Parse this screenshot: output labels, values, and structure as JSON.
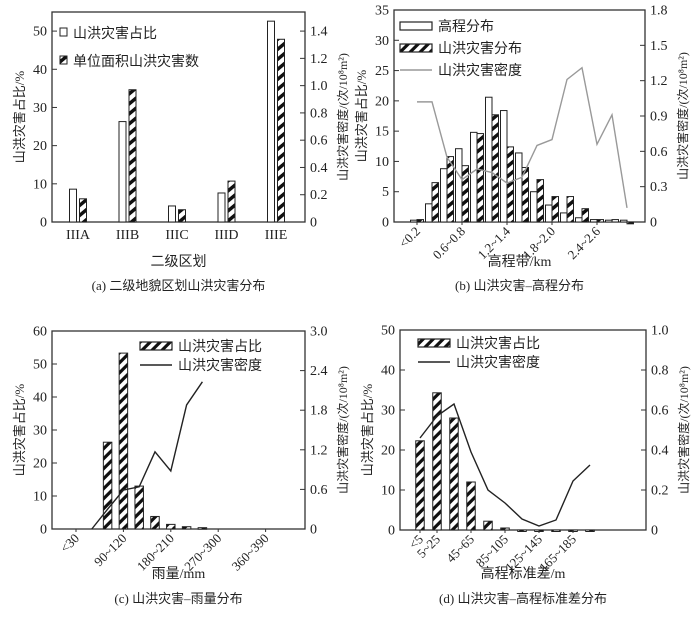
{
  "chart_data": [
    {
      "id": "a",
      "type": "bar",
      "caption": "(a) 二级地貌区划山洪灾害分布",
      "xlabel": "二级区划",
      "ylabel": "山洪灾害占比/%",
      "y2label": "山洪灾害密度/(次/10⁸m²)",
      "categories": [
        "IIIA",
        "IIIB",
        "IIIC",
        "IIID",
        "IIIE"
      ],
      "ylim": [
        0,
        55
      ],
      "y2lim": [
        0,
        1.54
      ],
      "yticks": [
        "0",
        "10",
        "20",
        "30",
        "40",
        "50"
      ],
      "y2ticks": [
        "0",
        "0.2",
        "0.4",
        "0.6",
        "0.8",
        "1.0",
        "1.2",
        "1.4"
      ],
      "legend_position": "top-left",
      "series": [
        {
          "name": "山洪灾害占比",
          "style": "open",
          "axis": "left",
          "values": [
            8.6,
            26.3,
            4.2,
            7.6,
            52.6
          ]
        },
        {
          "name": "单位面积山洪灾害数",
          "style": "hatched",
          "axis": "right",
          "values": [
            0.17,
            0.97,
            0.09,
            0.3,
            1.34
          ]
        }
      ]
    },
    {
      "id": "b",
      "type": "bar",
      "caption": "(b) 山洪灾害–高程分布",
      "xlabel": "高程带/km",
      "ylabel": "山洪灾害占比/%",
      "y2label": "山洪灾害密度/(次/10⁸m²)",
      "categories": [
        "<0.2",
        "0.2~0.4",
        "0.4~0.6",
        "0.6~0.8",
        "0.8~1.0",
        "1.0~1.2",
        "1.2~1.4",
        "1.4~1.6",
        "1.6~1.8",
        "1.8~2.0",
        "2.0~2.2",
        "2.2~2.4",
        "2.4~2.6",
        "2.6~2.8",
        "2.8~3.0"
      ],
      "tick_labels_shown": [
        "<0.2",
        "0.6~0.8",
        "1.2~1.4",
        "1.8~2.0",
        "2.4~2.6"
      ],
      "ylim": [
        0,
        35
      ],
      "y2lim": [
        0,
        1.8
      ],
      "yticks": [
        "0",
        "5",
        "10",
        "15",
        "20",
        "25",
        "30",
        "35"
      ],
      "y2ticks": [
        "0",
        "0.3",
        "0.6",
        "0.9",
        "1.2",
        "1.5",
        "1.8"
      ],
      "legend_position": "top-left",
      "series": [
        {
          "name": "高程分布",
          "style": "open",
          "axis": "left",
          "values": [
            0.3,
            3.0,
            8.8,
            12.1,
            14.8,
            20.6,
            18.4,
            11.4,
            5.0,
            2.8,
            1.5,
            0.7,
            0.4,
            0.3,
            0.3
          ]
        },
        {
          "name": "山洪灾害分布",
          "style": "hatched",
          "axis": "left",
          "values": [
            0.4,
            6.5,
            10.8,
            9.3,
            14.6,
            17.7,
            12.4,
            9.0,
            7.0,
            4.2,
            4.2,
            2.2,
            0.4,
            0.4,
            -0.3
          ]
        },
        {
          "name": "山洪灾害密度",
          "style": "line-gray",
          "axis": "right",
          "values": [
            1.02,
            1.02,
            0.55,
            0.36,
            0.45,
            0.42,
            0.33,
            0.38,
            0.65,
            0.7,
            1.21,
            1.31,
            0.66,
            0.91,
            0.12
          ]
        }
      ]
    },
    {
      "id": "c",
      "type": "bar",
      "caption": "(c) 山洪灾害–雨量分布",
      "xlabel": "雨量/mm",
      "ylabel": "山洪灾害占比/%",
      "y2label": "山洪灾害密度/(次/10⁸m²)",
      "categories": [
        "<30",
        "30~60",
        "60~90",
        "90~120",
        "120~150",
        "150~180",
        "180~210",
        "210~240",
        "240~270",
        "270~300",
        "300~330",
        "330~360",
        "360~390",
        "390~420",
        "420~450"
      ],
      "tick_labels_shown": [
        "<30",
        "90~120",
        "180~210",
        "270~300",
        "360~390"
      ],
      "ylim": [
        0,
        60
      ],
      "y2lim": [
        0,
        3.0
      ],
      "yticks": [
        "0",
        "10",
        "20",
        "30",
        "40",
        "50",
        "60"
      ],
      "y2ticks": [
        "0",
        "0.6",
        "1.2",
        "1.8",
        "2.4",
        "3.0"
      ],
      "legend_position": "top-right",
      "series": [
        {
          "name": "山洪灾害占比",
          "style": "hatched",
          "axis": "left",
          "values": [
            0,
            0,
            26.3,
            53.3,
            13.0,
            3.8,
            1.4,
            0.7,
            0.4,
            0,
            0,
            0,
            0,
            0,
            0
          ]
        },
        {
          "name": "山洪灾害密度",
          "style": "line-black",
          "axis": "right",
          "values": [
            null,
            0,
            0.3,
            0.59,
            0.64,
            1.17,
            0.88,
            1.88,
            2.23,
            null,
            null,
            null,
            null,
            null,
            null
          ]
        }
      ]
    },
    {
      "id": "d",
      "type": "bar",
      "caption": "(d) 山洪灾害–高程标准差分布",
      "xlabel": "高程标准差/m",
      "ylabel": "山洪灾害占比/%",
      "y2label": "山洪灾害密度/(次/10⁸m²)",
      "categories": [
        "<5",
        "5~25",
        "25~45",
        "45~65",
        "65~85",
        "85~105",
        "105~125",
        "125~145",
        "145~165",
        "165~185",
        "185~205",
        "205~225",
        "225~245"
      ],
      "tick_labels_shown": [
        "<5",
        "5~25",
        "45~65",
        "85~105",
        "125~145",
        "165~185"
      ],
      "ylim": [
        0,
        50
      ],
      "y2lim": [
        0,
        1.0
      ],
      "yticks": [
        "0",
        "10",
        "20",
        "30",
        "40",
        "50"
      ],
      "y2ticks": [
        "0",
        "0.2",
        "0.4",
        "0.6",
        "0.8",
        "1.0"
      ],
      "legend_position": "top-left",
      "series": [
        {
          "name": "山洪灾害占比",
          "style": "hatched",
          "axis": "left",
          "values": [
            22.3,
            34.3,
            28.0,
            12.0,
            2.2,
            0.5,
            -0.2,
            -0.2,
            -0.2,
            -0.2,
            -0.2,
            0,
            0
          ]
        },
        {
          "name": "山洪灾害密度",
          "style": "line-black",
          "axis": "right",
          "values": [
            0.46,
            0.57,
            0.63,
            0.39,
            0.2,
            0.135,
            0.055,
            0.02,
            0.05,
            0.245,
            0.325,
            null,
            null
          ]
        }
      ]
    }
  ]
}
